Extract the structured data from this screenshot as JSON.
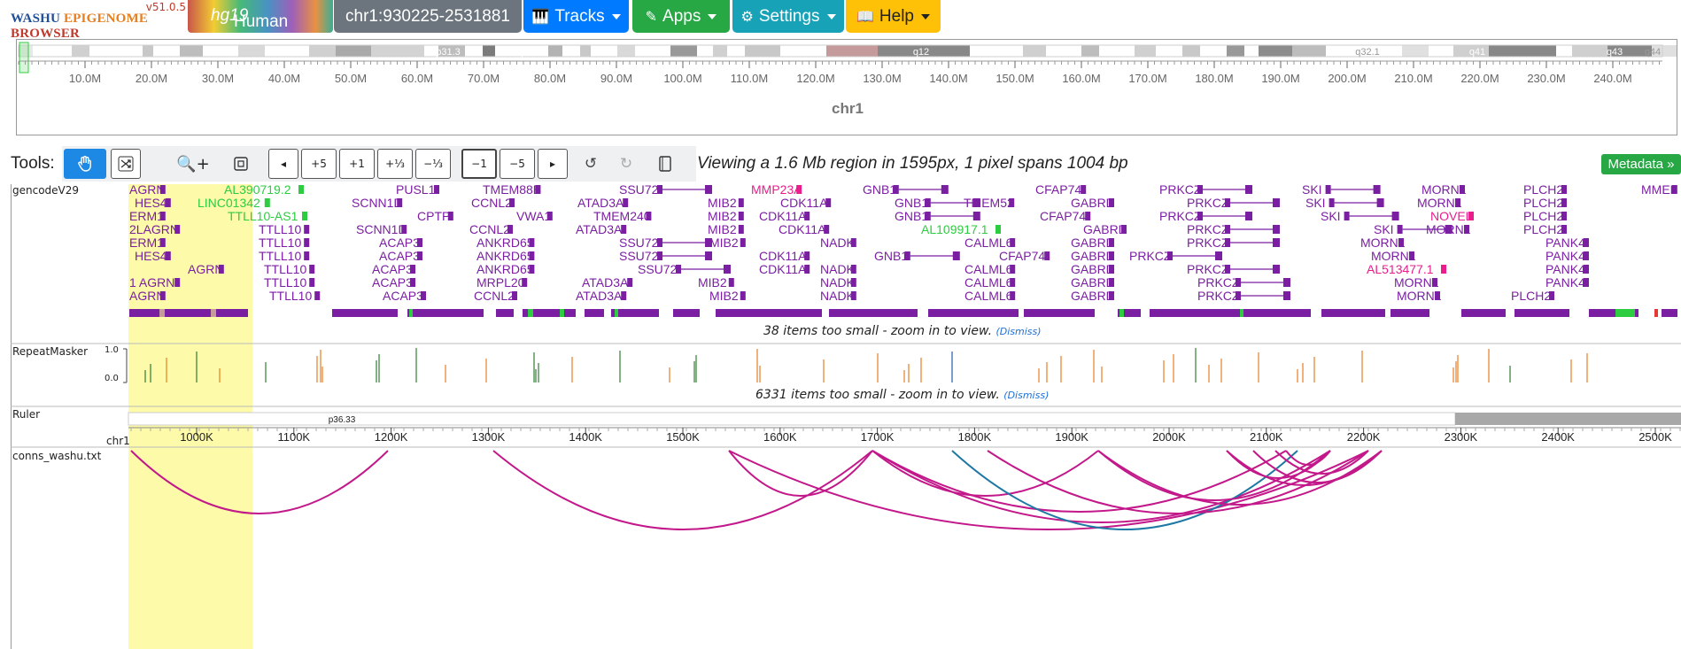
{
  "app": {
    "version": "v51.0.5",
    "logo_w": "WASHU ",
    "logo_e": "EPIGENOME ",
    "logo_b": "BROWSER",
    "genome_prefix": "Human ",
    "genome_build": "hg19"
  },
  "nav": {
    "locus": "chr1:930225-2531881",
    "tracks": "Tracks",
    "apps": "Apps",
    "settings": "Settings",
    "help": "Help"
  },
  "ideogram": {
    "chrom": "chr1",
    "bands": [
      "p31.3",
      "p31.1",
      "q12",
      "q32.1",
      "q41",
      "q43",
      "q44"
    ],
    "ticks": [
      "10.0M",
      "20.0M",
      "30.0M",
      "40.0M",
      "50.0M",
      "60.0M",
      "70.0M",
      "80.0M",
      "90.0M",
      "100.0M",
      "110.0M",
      "120.0M",
      "130.0M",
      "140.0M",
      "150.0M",
      "160.0M",
      "170.0M",
      "180.0M",
      "190.0M",
      "200.0M",
      "210.0M",
      "220.0M",
      "230.0M",
      "240.0M"
    ]
  },
  "tools": {
    "label": "Tools:",
    "zoom_buttons": [
      "+5",
      "+1",
      "+⅓",
      "−⅓",
      "−1",
      "−5"
    ],
    "region_text": "Viewing a 1.6 Mb region in 1595px, 1 pixel spans 1004 bp",
    "metadata": "Metadata »"
  },
  "tracks": {
    "gencode": {
      "label": "gencodeV29",
      "genes": [
        [
          "AGRN",
          146,
          219
        ],
        [
          "AL390719.2",
          253,
          219
        ],
        [
          "PUSL1",
          447,
          219
        ],
        [
          "TMEM88B",
          545,
          219
        ],
        [
          "SSU72",
          699,
          219
        ],
        [
          "MMP23A",
          848,
          219
        ],
        [
          "GNB1",
          974,
          219
        ],
        [
          "CFAP74",
          1169,
          219
        ],
        [
          "PRKCZ",
          1309,
          219
        ],
        [
          "SKI",
          1470,
          219
        ],
        [
          "MORN1",
          1605,
          219
        ],
        [
          "PLCH2",
          1720,
          219
        ],
        [
          "MMEL",
          1853,
          219
        ],
        [
          "HES4",
          152,
          234
        ],
        [
          "LINC01342",
          223,
          234
        ],
        [
          "SCNN1D",
          397,
          234
        ],
        [
          "CCNL2",
          532,
          234
        ],
        [
          "ATAD3A",
          652,
          234
        ],
        [
          "MIB2",
          799,
          234
        ],
        [
          "CDK11A",
          881,
          234
        ],
        [
          "GNB1",
          1010,
          234
        ],
        [
          "TMEM52",
          1088,
          234
        ],
        [
          "GABRD",
          1209,
          234
        ],
        [
          "PRKCZ",
          1340,
          234
        ],
        [
          "SKI",
          1474,
          234
        ],
        [
          "MORN1",
          1600,
          234
        ],
        [
          "PLCH2",
          1720,
          234
        ],
        [
          "ERM1",
          146,
          249
        ],
        [
          "TTLL10-AS1",
          257,
          249
        ],
        [
          "CPTP",
          471,
          249
        ],
        [
          "VWA1",
          583,
          249
        ],
        [
          "TMEM240",
          670,
          249
        ],
        [
          "MIB2",
          799,
          249
        ],
        [
          "CDK11A",
          857,
          249
        ],
        [
          "GNB1",
          1010,
          249
        ],
        [
          "CFAP74",
          1174,
          249
        ],
        [
          "PRKCZ",
          1309,
          249
        ],
        [
          "SKI",
          1491,
          249
        ],
        [
          "NOVEL",
          1615,
          249
        ],
        [
          "PLCH2",
          1720,
          249
        ],
        [
          "2LAGRN",
          146,
          264
        ],
        [
          "TTLL10",
          292,
          264
        ],
        [
          "SCNN1D",
          402,
          264
        ],
        [
          "CCNL2",
          530,
          264
        ],
        [
          "ATAD3A",
          650,
          264
        ],
        [
          "MIB2",
          799,
          264
        ],
        [
          "CDK11A",
          879,
          264
        ],
        [
          "AL109917.1",
          1040,
          264
        ],
        [
          "GABRD",
          1223,
          264
        ],
        [
          "PRKCZ",
          1340,
          264
        ],
        [
          "SKI",
          1551,
          264
        ],
        [
          "MORN1",
          1610,
          264
        ],
        [
          "PLCH2",
          1720,
          264
        ],
        [
          "ERM1",
          146,
          279
        ],
        [
          "TTLL10",
          292,
          279
        ],
        [
          "ACAP3",
          428,
          279
        ],
        [
          "ANKRD65",
          538,
          279
        ],
        [
          "SSU72",
          699,
          279
        ],
        [
          "MIB2",
          801,
          279
        ],
        [
          "NADK",
          926,
          279
        ],
        [
          "CALML6",
          1089,
          279
        ],
        [
          "GABRD",
          1209,
          279
        ],
        [
          "PRKCZ",
          1340,
          279
        ],
        [
          "MORN1",
          1536,
          279
        ],
        [
          "PANK4",
          1745,
          279
        ],
        [
          "HES4",
          152,
          294
        ],
        [
          "TTLL10",
          292,
          294
        ],
        [
          "ACAP3",
          428,
          294
        ],
        [
          "ANKRD65",
          538,
          294
        ],
        [
          "SSU72",
          699,
          294
        ],
        [
          "CDK11A",
          857,
          294
        ],
        [
          "GNB1",
          987,
          294
        ],
        [
          "CFAP74",
          1128,
          294
        ],
        [
          "GABRD",
          1209,
          294
        ],
        [
          "PRKCZ",
          1275,
          294
        ],
        [
          "MORN1",
          1548,
          294
        ],
        [
          "PANK4",
          1745,
          294
        ],
        [
          "AGRN",
          212,
          309
        ],
        [
          "TTLL10",
          298,
          309
        ],
        [
          "ACAP3",
          420,
          309
        ],
        [
          "ANKRD65",
          538,
          309
        ],
        [
          "SSU72",
          720,
          309
        ],
        [
          "CDK11A",
          857,
          309
        ],
        [
          "NADK",
          926,
          309
        ],
        [
          "CALML6",
          1089,
          309
        ],
        [
          "GABRD",
          1209,
          309
        ],
        [
          "PRKCZ",
          1340,
          309
        ],
        [
          "AL513477.1",
          1543,
          309
        ],
        [
          "PANK4",
          1745,
          309
        ],
        [
          "1 AGRN",
          146,
          324
        ],
        [
          "TTLL10",
          298,
          324
        ],
        [
          "ACAP3",
          420,
          324
        ],
        [
          "MRPL20",
          538,
          324
        ],
        [
          "ATAD3A",
          657,
          324
        ],
        [
          "MIB2",
          788,
          324
        ],
        [
          "NADK",
          926,
          324
        ],
        [
          "CALML6",
          1089,
          324
        ],
        [
          "GABRD",
          1209,
          324
        ],
        [
          "PRKCZ",
          1352,
          324
        ],
        [
          "MORN1",
          1574,
          324
        ],
        [
          "PANK4",
          1745,
          324
        ],
        [
          "AGRN",
          146,
          339
        ],
        [
          "TTLL10",
          304,
          339
        ],
        [
          "ACAP3",
          432,
          339
        ],
        [
          "CCNL2",
          535,
          339
        ],
        [
          "ATAD3A",
          650,
          339
        ],
        [
          "MIB2",
          801,
          339
        ],
        [
          "NADK",
          926,
          339
        ],
        [
          "CALML6",
          1089,
          339
        ],
        [
          "GABRD",
          1209,
          339
        ],
        [
          "PRKCZ",
          1352,
          339
        ],
        [
          "MORN1",
          1577,
          339
        ],
        [
          "PLCH2",
          1706,
          339
        ]
      ],
      "note": "38 items too small - zoom in to view.",
      "dismiss": "(Dismiss)"
    },
    "repeat": {
      "label": "RepeatMasker",
      "ymax": "1.0",
      "ymin": "0.0",
      "note": "6331 items too small - zoom in to view.",
      "dismiss": "(Dismiss)"
    },
    "ruler": {
      "label": "Ruler",
      "chrom": "chr1",
      "band": "p36.33",
      "ticks": [
        "1000K",
        "1100K",
        "1200K",
        "1300K",
        "1400K",
        "1500K",
        "1600K",
        "1700K",
        "1800K",
        "1900K",
        "2000K",
        "2100K",
        "2200K",
        "2300K",
        "2400K",
        "2500K"
      ]
    },
    "conns": {
      "label": "conns_washu.txt"
    }
  },
  "colors": {
    "gene_purple": "#7b1fa2",
    "gene_green": "#2ecc40",
    "gene_magenta": "#e91e8c",
    "arc_magenta": "#c2188a",
    "arc_teal": "#1f78a4",
    "highlight": "#fdfaa9",
    "nav_gray": "#6c757d",
    "nav_blue": "#007bff",
    "nav_green": "#28a745",
    "nav_teal": "#17a2b8",
    "nav_yellow": "#ffc107"
  }
}
